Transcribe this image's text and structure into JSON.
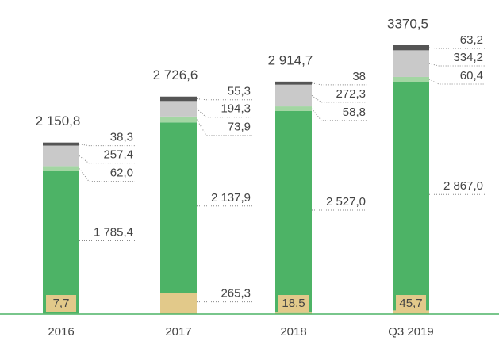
{
  "chart_data": {
    "type": "stacked-bar",
    "categories": [
      "2016",
      "2017",
      "2018",
      "Q3 2019"
    ],
    "series": [
      {
        "color": "#e2c98a",
        "values": [
          7.7,
          265.3,
          18.5,
          45.7
        ],
        "value_labels": [
          "7,7",
          "265,3",
          "18,5",
          "45,7"
        ]
      },
      {
        "color": "#4db366",
        "values": [
          1785.4,
          2137.9,
          2527.0,
          2867.0
        ],
        "value_labels": [
          "1 785,4",
          "2 137,9",
          "2 527,0",
          "2 867,0"
        ]
      },
      {
        "color": "#a3d6a3",
        "values": [
          62.0,
          73.9,
          58.8,
          60.4
        ],
        "value_labels": [
          "62,0",
          "73,9",
          "58,8",
          "60,4"
        ]
      },
      {
        "color": "#c9c9c9",
        "values": [
          257.4,
          194.3,
          272.3,
          334.2
        ],
        "value_labels": [
          "257,4",
          "194,3",
          "272,3",
          "334,2"
        ]
      },
      {
        "color": "#555555",
        "values": [
          38.3,
          55.3,
          38,
          63.2
        ],
        "value_labels": [
          "38,3",
          "55,3",
          "38",
          "63,2"
        ]
      }
    ],
    "totals": {
      "values": [
        2150.8,
        2726.6,
        2914.7,
        3370.5
      ],
      "value_labels": [
        "2 150,8",
        "2 726,6",
        "2 914,7",
        "3370,5"
      ]
    }
  }
}
